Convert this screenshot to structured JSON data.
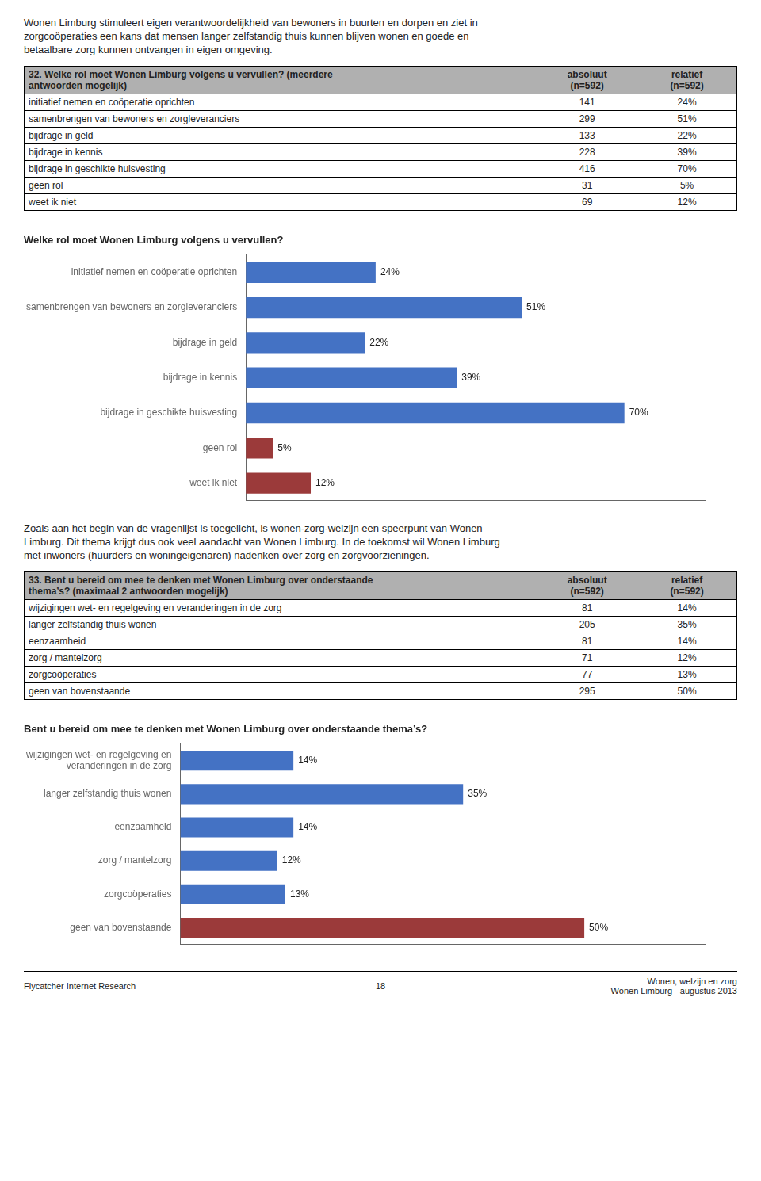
{
  "intro_text": "Wonen Limburg stimuleert eigen verantwoordelijkheid van bewoners in buurten en dorpen en ziet in\nzorgcoöperaties een kans dat mensen langer zelfstandig thuis kunnen blijven wonen en goede en\nbetaalbare zorg kunnen ontvangen in eigen omgeving.",
  "table_q32": {
    "header": [
      "32. Welke rol moet Wonen Limburg volgens u vervullen? (meerdere\nantwoorden mogelijk)",
      "absoluut\n(n=592)",
      "relatief\n(n=592)"
    ],
    "header_color": "#B0B0B0",
    "rows": [
      [
        "initiatief nemen en coöperatie oprichten",
        "141",
        "24%"
      ],
      [
        "samenbrengen van bewoners en zorgleveranciers",
        "299",
        "51%"
      ],
      [
        "bijdrage in geld",
        "133",
        "22%"
      ],
      [
        "bijdrage in kennis",
        "228",
        "39%"
      ],
      [
        "bijdrage in geschikte huisvesting",
        "416",
        "70%"
      ],
      [
        "geen rol",
        "31",
        "5%"
      ],
      [
        "weet ik niet",
        "69",
        "12%"
      ]
    ]
  },
  "middle_text": "Zoals aan het begin van de vragenlijst is toegelicht, is wonen-zorg-welzijn een speerpunt van Wonen\nLimburg. Dit thema krijgt dus ook veel aandacht van Wonen Limburg. In de toekomst wil Wonen Limburg\nmet inwoners (huurders en woningeigenaren) nadenken over zorg en zorgvoorzieningen.",
  "table_q33": {
    "header": [
      "33. Bent u bereid om mee te denken met Wonen Limburg over onderstaande\nthema’s? (maximaal 2 antwoorden mogelijk)",
      "absoluut\n(n=592)",
      "relatief\n(n=592)"
    ],
    "header_color": "#B0B0B0",
    "rows": [
      [
        "wijzigingen wet- en regelgeving en veranderingen in de zorg",
        "81",
        "14%"
      ],
      [
        "langer zelfstandig thuis wonen",
        "205",
        "35%"
      ],
      [
        "eenzaamheid",
        "81",
        "14%"
      ],
      [
        "zorg / mantelzorg",
        "71",
        "12%"
      ],
      [
        "zorgcoöperaties",
        "77",
        "13%"
      ],
      [
        "geen van bovenstaande",
        "295",
        "50%"
      ]
    ]
  },
  "chart_data": [
    {
      "type": "bar",
      "orientation": "horizontal",
      "title": "Welke rol moet Wonen Limburg volgens u vervullen?",
      "categories": [
        "initiatief nemen en coöperatie oprichten",
        "samenbrengen van bewoners en zorgleveranciers",
        "bijdrage in geld",
        "bijdrage in kennis",
        "bijdrage in geschikte huisvesting",
        "geen rol",
        "weet ik niet"
      ],
      "values": [
        24,
        51,
        22,
        39,
        70,
        5,
        12
      ],
      "value_labels": [
        "24%",
        "51%",
        "22%",
        "39%",
        "70%",
        "5%",
        "12%"
      ],
      "colors": [
        "#4472C4",
        "#4472C4",
        "#4472C4",
        "#4472C4",
        "#4472C4",
        "#9B3A3A",
        "#9B3A3A"
      ],
      "xlim": [
        0,
        85
      ],
      "grid": false,
      "data_labels": true,
      "tick_labels": "y"
    },
    {
      "type": "bar",
      "orientation": "horizontal",
      "title": "Bent u bereid om mee te denken met Wonen Limburg over onderstaande thema’s?",
      "categories": [
        "wijzigingen wet- en regelgeving en\nveranderingen in de zorg",
        "langer zelfstandig thuis wonen",
        "eenzaamheid",
        "zorg / mantelzorg",
        "zorgcoöperaties",
        "geen van bovenstaande"
      ],
      "values": [
        14,
        35,
        14,
        12,
        13,
        50
      ],
      "value_labels": [
        "14%",
        "35%",
        "14%",
        "12%",
        "13%",
        "50%"
      ],
      "colors": [
        "#4472C4",
        "#4472C4",
        "#4472C4",
        "#4472C4",
        "#4472C4",
        "#9B3A3A"
      ],
      "xlim": [
        0,
        65
      ],
      "grid": false,
      "data_labels": true,
      "tick_labels": "y"
    }
  ],
  "footer": {
    "left": "Flycatcher Internet Research",
    "center": "18",
    "right": "Wonen, welzijn en zorg\nWonen Limburg - augustus 2013"
  }
}
